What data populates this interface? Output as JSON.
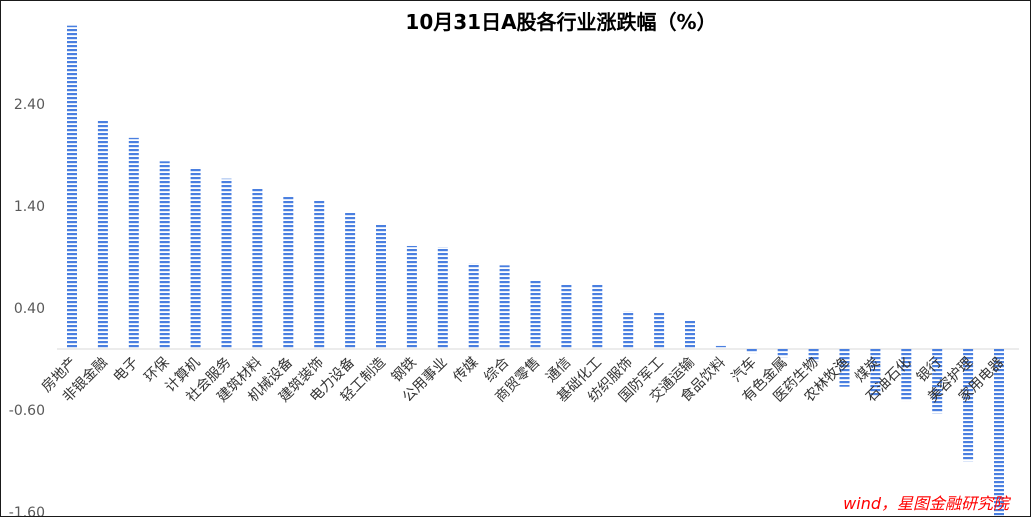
{
  "chart_data": {
    "type": "bar",
    "title": "10月31日A股各行业涨跌幅（%）",
    "source": "wind，星图金融研究院",
    "categories": [
      "房地产",
      "非银金融",
      "电子",
      "环保",
      "计算机",
      "社会服务",
      "建筑材料",
      "机械设备",
      "建筑装饰",
      "电力设备",
      "轻工制造",
      "钢铁",
      "公用事业",
      "传媒",
      "综合",
      "商贸零售",
      "通信",
      "基础化工",
      "纺织服饰",
      "国防军工",
      "交通运输",
      "食品饮料",
      "汽车",
      "有色金属",
      "医药生物",
      "农林牧渔",
      "煤炭",
      "石油石化",
      "银行",
      "美容护理",
      "家用电器"
    ],
    "values": [
      3.17,
      2.25,
      2.07,
      1.84,
      1.78,
      1.67,
      1.57,
      1.49,
      1.46,
      1.34,
      1.22,
      1.01,
      1.0,
      0.84,
      0.82,
      0.67,
      0.64,
      0.63,
      0.37,
      0.36,
      0.28,
      0.03,
      -0.04,
      -0.08,
      -0.12,
      -0.37,
      -0.47,
      -0.51,
      -0.63,
      -1.1,
      -1.68
    ],
    "yticks": [
      "-1.60",
      "-0.60",
      "0.40",
      "1.40",
      "2.40"
    ],
    "ylim": [
      -1.6,
      3.3
    ],
    "bar_color": "#4a7fe0",
    "grid": false
  }
}
